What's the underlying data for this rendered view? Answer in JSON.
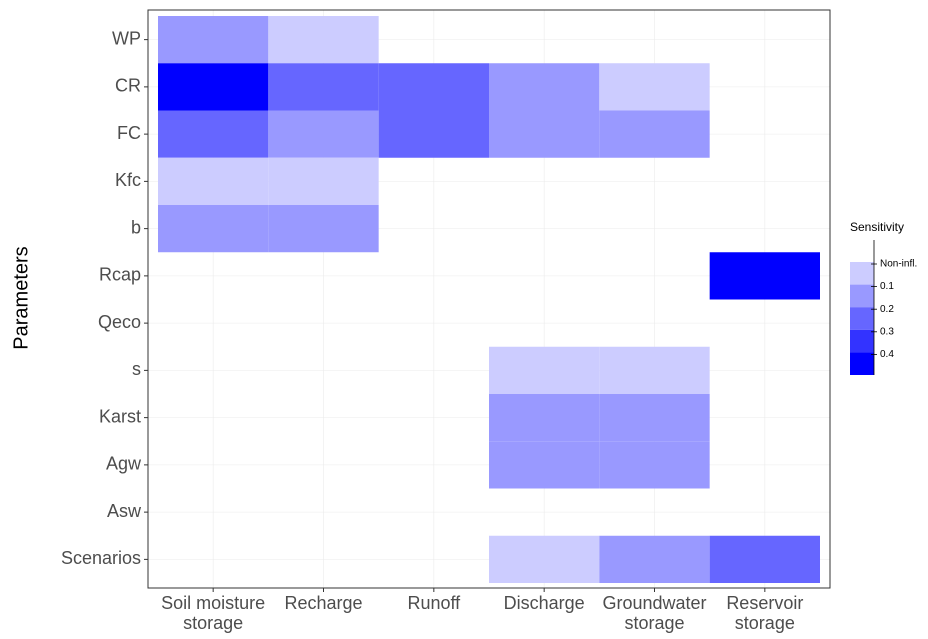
{
  "chart_data": {
    "type": "heatmap",
    "x_categories": [
      "Soil moisture\nstorage",
      "Recharge",
      "Runoff",
      "Discharge",
      "Groundwater\nstorage",
      "Reservoir\nstorage"
    ],
    "y_categories": [
      "WP",
      "CR",
      "FC",
      "Kfc",
      "b",
      "Rcap",
      "Qeco",
      "s",
      "Karst",
      "Agw",
      "Asw",
      "Scenarios"
    ],
    "ylabel": "Parameters",
    "cells": [
      [
        "#9999ff",
        "#ccccff",
        null,
        null,
        null,
        null
      ],
      [
        "#0000ff",
        "#6666ff",
        "#6666ff",
        "#9999ff",
        "#ccccff",
        null
      ],
      [
        "#6666ff",
        "#9999ff",
        "#6666ff",
        "#9999ff",
        "#9999ff",
        null
      ],
      [
        "#ccccff",
        "#ccccff",
        null,
        null,
        null,
        null
      ],
      [
        "#9999ff",
        "#9999ff",
        null,
        null,
        null,
        null
      ],
      [
        null,
        null,
        null,
        null,
        null,
        "#0000ff"
      ],
      [
        null,
        null,
        null,
        null,
        null,
        null
      ],
      [
        null,
        null,
        null,
        "#ccccff",
        "#ccccff",
        null
      ],
      [
        null,
        null,
        null,
        "#9999ff",
        "#9999ff",
        null
      ],
      [
        null,
        null,
        null,
        "#9999ff",
        "#9999ff",
        null
      ],
      [
        null,
        null,
        null,
        null,
        null,
        null
      ],
      [
        null,
        null,
        null,
        "#ccccff",
        "#9999ff",
        "#6666ff"
      ]
    ],
    "grid": true,
    "legend": {
      "title": "Sensitivity",
      "position": "right",
      "colors": [
        "#ccccff",
        "#9999ff",
        "#6666ff",
        "#3333ff",
        "#0000ff"
      ],
      "breaks": [
        "Non-infl.",
        0.1,
        0.2,
        0.3,
        0.4
      ]
    }
  }
}
